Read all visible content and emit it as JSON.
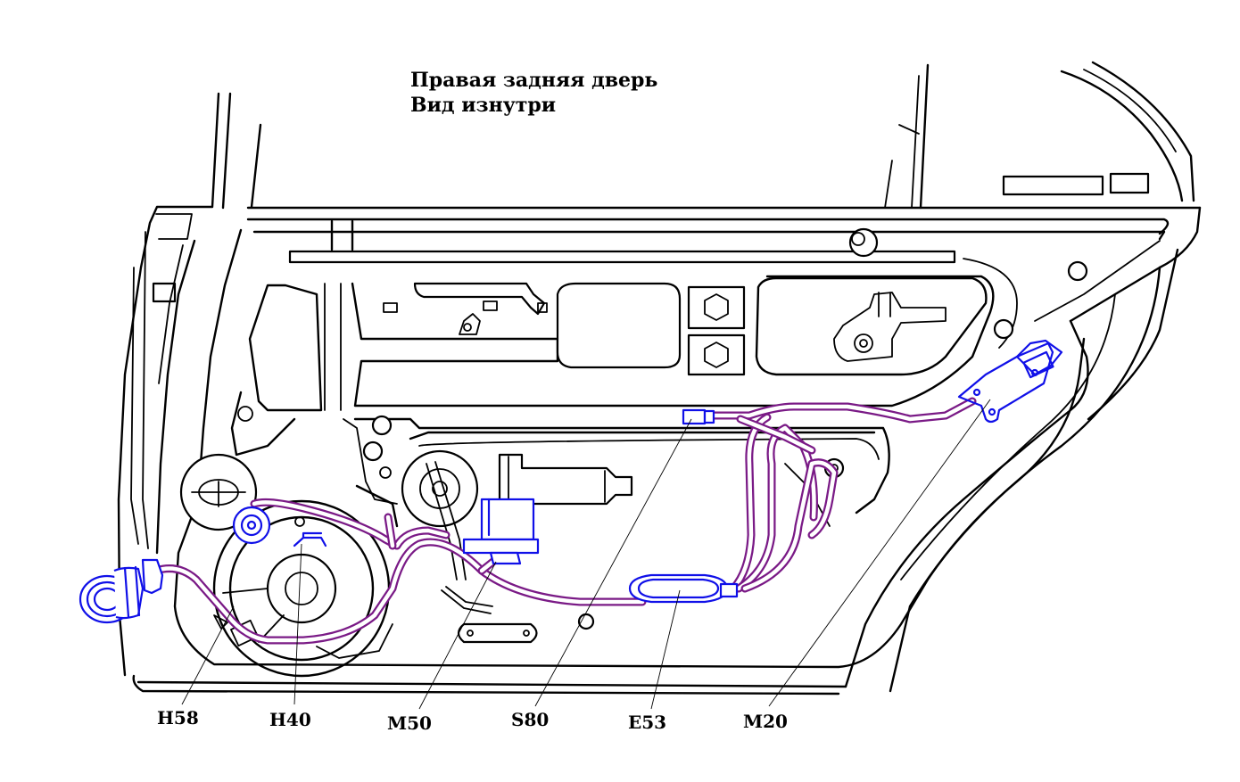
{
  "title": {
    "line1": "Правая задняя дверь",
    "line2": "Вид изнутри"
  },
  "labels": [
    {
      "id": "h58",
      "text": "H58"
    },
    {
      "id": "h40",
      "text": "H40"
    },
    {
      "id": "m50",
      "text": "M50"
    },
    {
      "id": "s80",
      "text": "S80"
    },
    {
      "id": "e53",
      "text": "E53"
    },
    {
      "id": "m20",
      "text": "M20"
    }
  ],
  "colors": {
    "outline": "#000000",
    "component": "#1010e8",
    "harness": "#7a1a86",
    "background": "#ffffff"
  }
}
